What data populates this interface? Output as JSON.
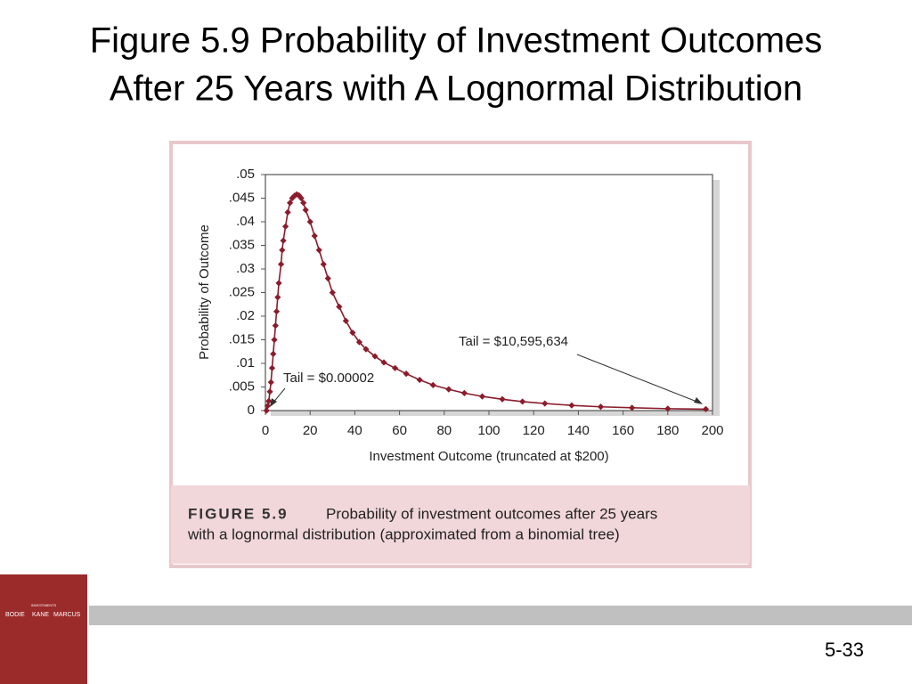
{
  "slide_title": [
    "Figure 5.9 Probability of Investment Outcomes",
    "After 25 Years with A Lognormal Distribution"
  ],
  "chart_data": {
    "type": "line",
    "x_label": "Investment Outcome (truncated at $200)",
    "y_label": "Probability of Outcome",
    "annotations": [
      "Tail = $10,595,634",
      "Tail = $0.00002"
    ],
    "x": [
      0.5,
      1,
      1.5,
      2,
      2.5,
      3,
      3.5,
      4,
      4.5,
      5,
      5.5,
      6,
      7,
      7.5,
      8,
      9,
      10,
      11,
      12,
      13,
      14,
      15,
      16,
      17,
      18,
      20,
      22,
      24,
      26,
      28,
      30,
      33,
      36,
      39,
      42,
      45,
      49,
      53,
      58,
      63,
      69,
      75,
      82,
      89,
      97,
      106,
      115,
      125,
      137,
      150,
      164,
      180,
      197
    ],
    "series": [
      {
        "name": "Probability",
        "color": "#8b1c2c",
        "values": [
          0.0,
          0.001,
          0.002,
          0.004,
          0.006,
          0.009,
          0.012,
          0.015,
          0.018,
          0.021,
          0.024,
          0.027,
          0.031,
          0.034,
          0.036,
          0.039,
          0.042,
          0.044,
          0.045,
          0.0455,
          0.0458,
          0.0456,
          0.045,
          0.044,
          0.0425,
          0.04,
          0.037,
          0.034,
          0.031,
          0.028,
          0.025,
          0.022,
          0.019,
          0.0165,
          0.0145,
          0.013,
          0.0115,
          0.0102,
          0.009,
          0.0078,
          0.0065,
          0.0054,
          0.0045,
          0.0037,
          0.003,
          0.0024,
          0.0019,
          0.0015,
          0.0011,
          0.0008,
          0.0006,
          0.0004,
          0.0003
        ]
      }
    ],
    "xlim": [
      0,
      200
    ],
    "xticks": [
      0,
      20,
      40,
      60,
      80,
      100,
      120,
      140,
      160,
      180,
      200
    ],
    "ylim": [
      0,
      0.05
    ],
    "yticks": [
      0,
      {
        "value": 0.005,
        "label": ".005"
      },
      {
        "value": 0.01,
        "label": ".01"
      },
      {
        "value": 0.015,
        "label": ".015"
      },
      {
        "value": 0.02,
        "label": ".02"
      },
      {
        "value": 0.025,
        "label": ".025"
      },
      {
        "value": 0.03,
        "label": ".03"
      },
      {
        "value": 0.035,
        "label": ".035"
      },
      {
        "value": 0.04,
        "label": ".04"
      },
      {
        "value": 0.045,
        "label": ".045"
      },
      {
        "value": 0.05,
        "label": ".05"
      }
    ],
    "grid": false
  },
  "caption": {
    "label": "FIGURE 5.9",
    "lines": [
      "Probability of investment outcomes after 25 years",
      "with a lognormal distribution (approximated from a binomial tree)"
    ]
  },
  "logo": {
    "top": "INVESTMENTS",
    "names": [
      "BODIE",
      "KANE",
      "MARCUS"
    ]
  },
  "page_number": "5-33"
}
